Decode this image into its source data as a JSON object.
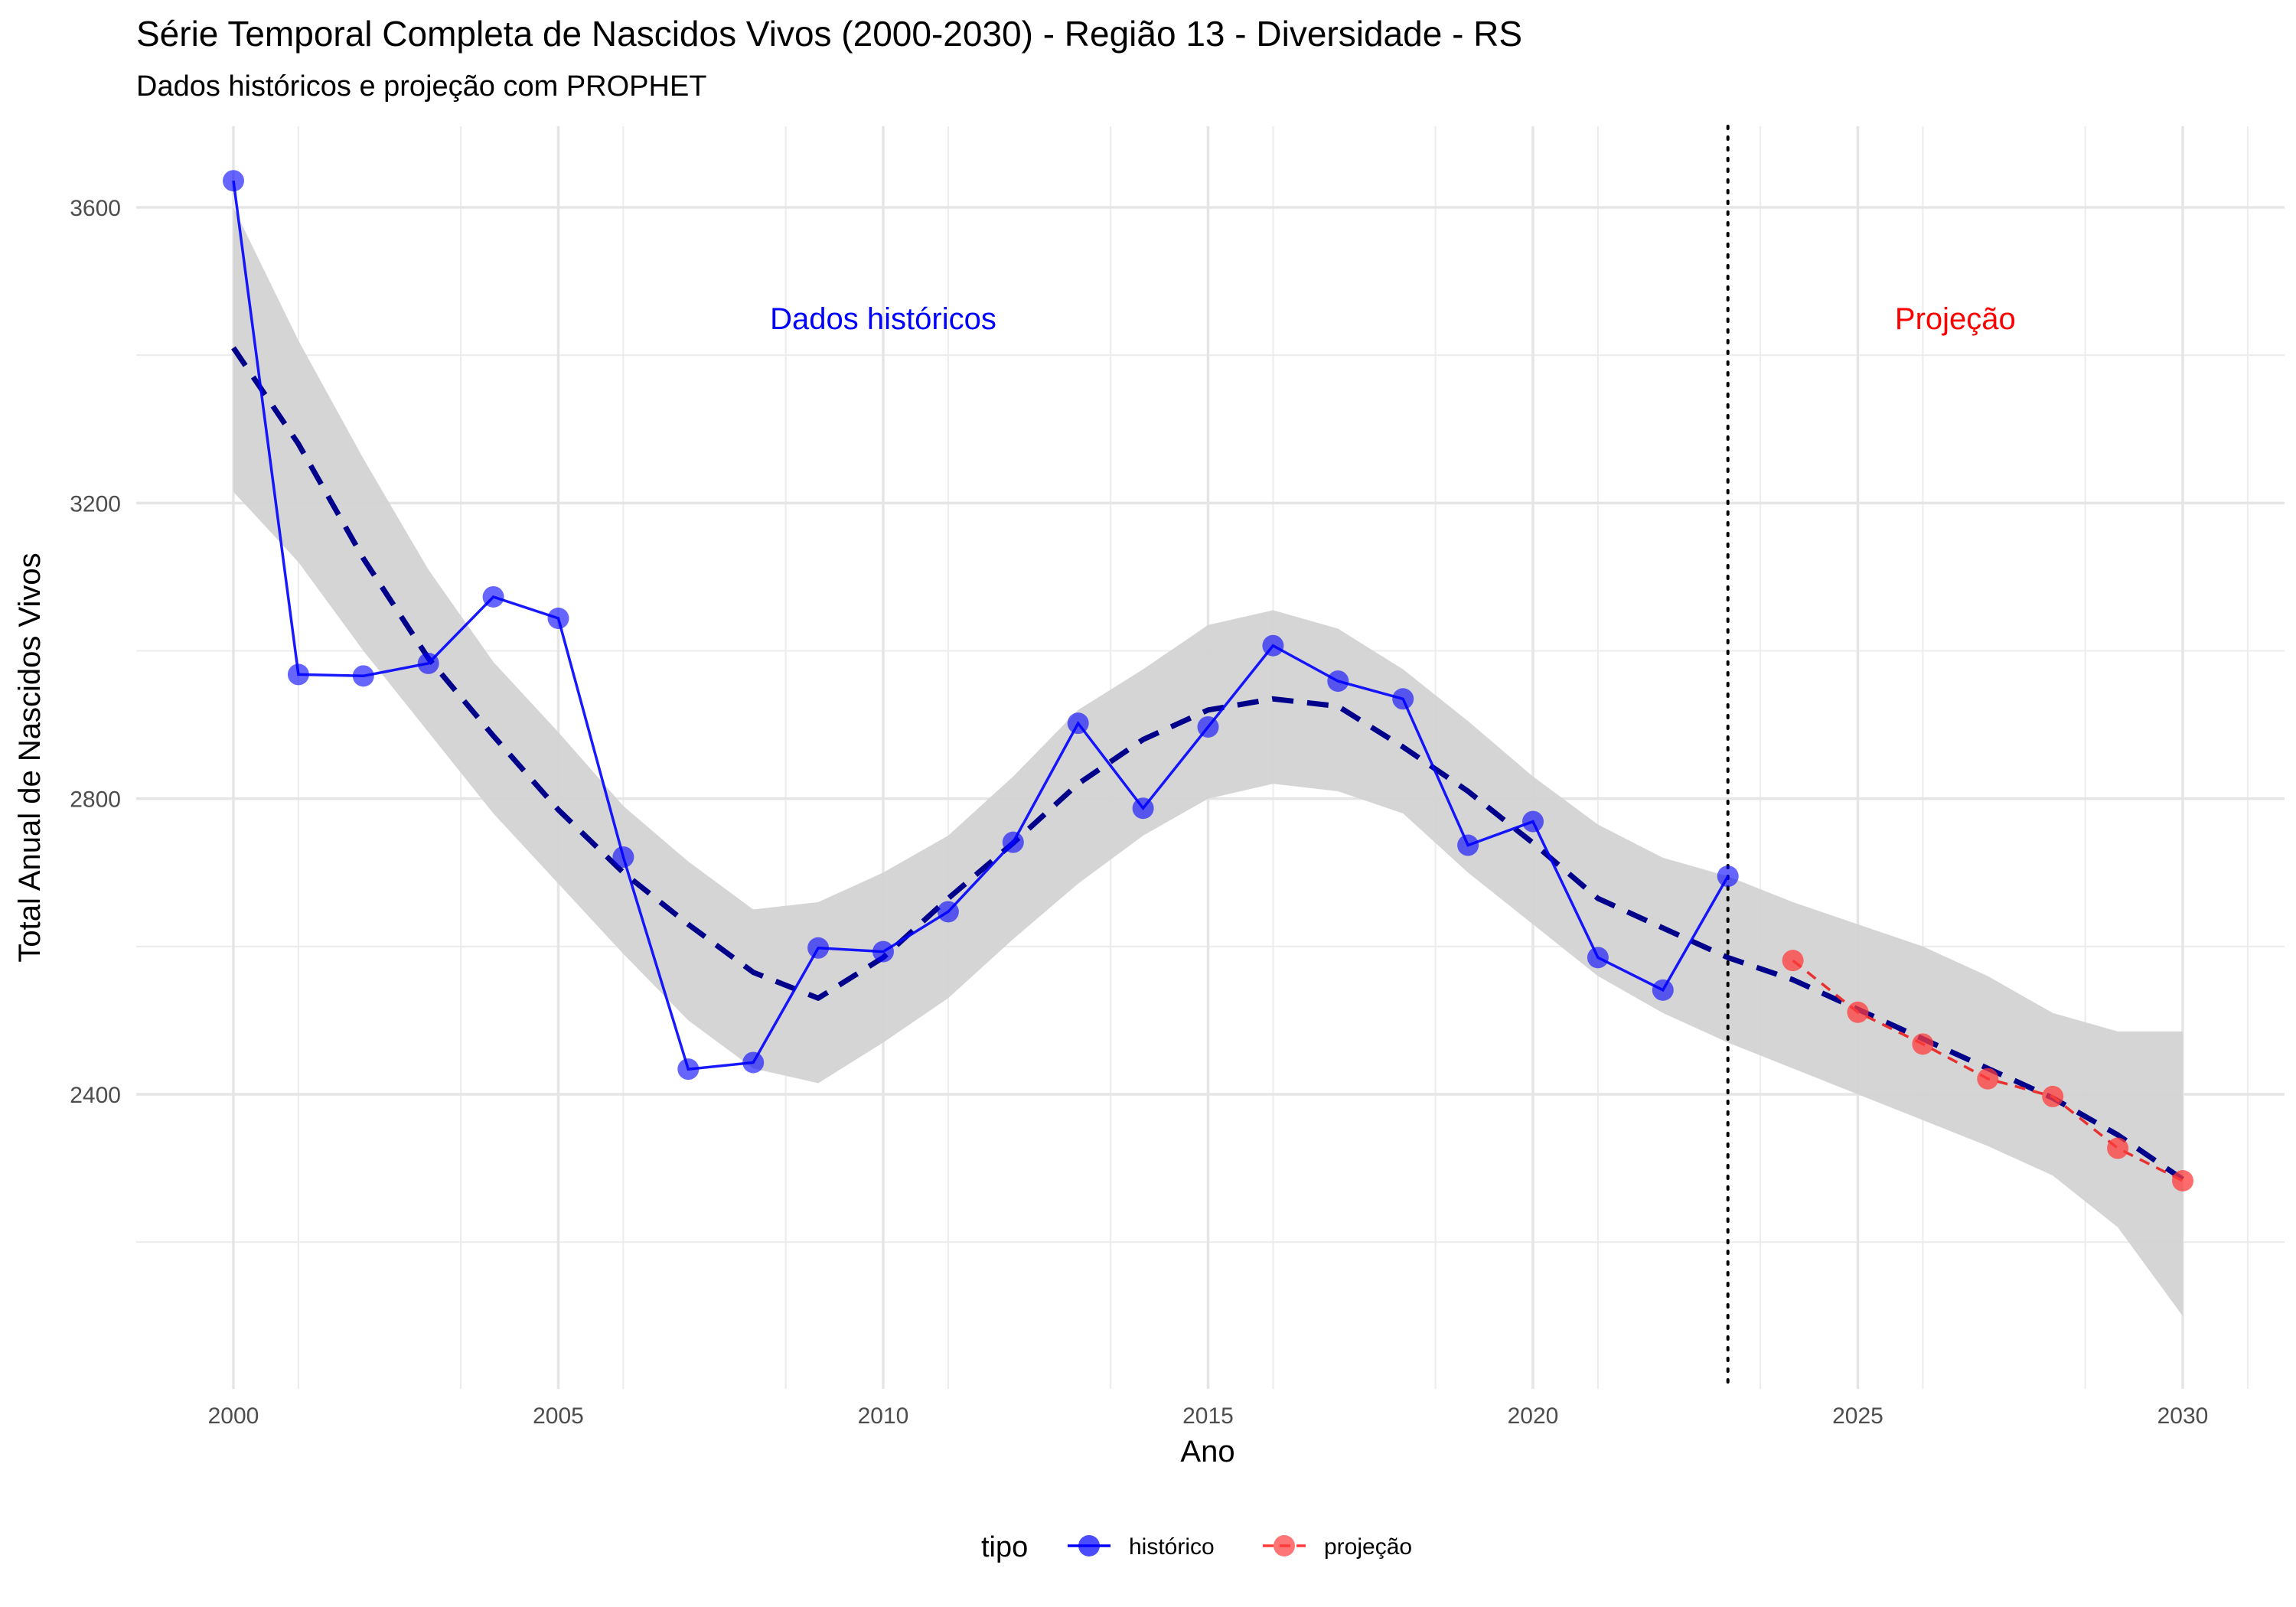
{
  "chart_data": {
    "type": "line",
    "title": "Série Temporal Completa de Nascidos Vivos (2000-2030) -  Região 13 - Diversidade - RS",
    "subtitle": "Dados históricos e projeção com PROPHET",
    "xlabel": "Ano",
    "ylabel": "Total Anual de Nascidos Vivos",
    "xlim": [
      1998.5,
      2031.5
    ],
    "ylim": [
      2025,
      3735
    ],
    "x_ticks": [
      2000,
      2005,
      2010,
      2015,
      2020,
      2025,
      2030
    ],
    "x_tick_labels": [
      "2000",
      "2005",
      "2010",
      "2015",
      "2020",
      "2025",
      "2030"
    ],
    "y_ticks": [
      2400,
      2800,
      3200,
      3600
    ],
    "y_tick_labels": [
      "2400",
      "2800",
      "3200",
      "3600"
    ],
    "grid": true,
    "legend": {
      "title": "tipo",
      "placement": "bottom",
      "entries": [
        {
          "label": "histórico",
          "color": "#0000ff"
        },
        {
          "label": "projeção",
          "color": "#ff3b3b"
        }
      ]
    },
    "series": [
      {
        "name": "histórico",
        "color": "#0000ff",
        "x": [
          2000,
          2001,
          2002,
          2003,
          2004,
          2005,
          2006,
          2007,
          2008,
          2009,
          2010,
          2011,
          2012,
          2013,
          2014,
          2015,
          2016,
          2017,
          2018,
          2019,
          2020,
          2021,
          2022,
          2023
        ],
        "values": [
          3636,
          2968,
          2966,
          2983,
          3073,
          3044,
          2721,
          2434,
          2443,
          2598,
          2593,
          2647,
          2741,
          2902,
          2787,
          2897,
          3007,
          2959,
          2935,
          2737,
          2769,
          2585,
          2541,
          2695
        ]
      },
      {
        "name": "projeção",
        "color": "#ff3b3b",
        "x": [
          2024,
          2025,
          2026,
          2027,
          2028,
          2029,
          2030
        ],
        "values": [
          2581,
          2511,
          2468,
          2421,
          2397,
          2327,
          2283
        ]
      }
    ],
    "trend": {
      "x": [
        2000,
        2001,
        2002,
        2003,
        2004,
        2005,
        2006,
        2007,
        2008,
        2009,
        2010,
        2011,
        2012,
        2013,
        2014,
        2015,
        2016,
        2017,
        2018,
        2019,
        2020,
        2021,
        2022,
        2023,
        2024,
        2025,
        2026,
        2027,
        2028,
        2029,
        2030
      ],
      "values": [
        3410,
        3280,
        3125,
        2990,
        2885,
        2785,
        2700,
        2630,
        2565,
        2530,
        2585,
        2665,
        2740,
        2820,
        2880,
        2920,
        2935,
        2925,
        2870,
        2810,
        2740,
        2665,
        2625,
        2585,
        2555,
        2515,
        2475,
        2435,
        2395,
        2345,
        2285
      ],
      "lower": [
        3215,
        3120,
        3000,
        2890,
        2780,
        2685,
        2590,
        2500,
        2435,
        2415,
        2470,
        2530,
        2610,
        2685,
        2750,
        2800,
        2820,
        2810,
        2780,
        2700,
        2630,
        2560,
        2510,
        2470,
        2435,
        2400,
        2365,
        2330,
        2290,
        2220,
        2100
      ],
      "upper": [
        3600,
        3420,
        3260,
        3110,
        2985,
        2890,
        2790,
        2715,
        2650,
        2660,
        2700,
        2750,
        2830,
        2920,
        2975,
        3035,
        3055,
        3030,
        2975,
        2905,
        2830,
        2765,
        2720,
        2695,
        2660,
        2630,
        2600,
        2560,
        2510,
        2485,
        2485
      ],
      "color": "#00008b",
      "band_color": "#d3d3d3"
    },
    "vline": {
      "x": 2023,
      "style": "dotted",
      "color": "#000000"
    },
    "annotations": [
      {
        "text": "Dados históricos",
        "x": 2010,
        "y": 3450,
        "color": "#0000ff"
      },
      {
        "text": "Projeção",
        "x": 2026.5,
        "y": 3450,
        "color": "#ff0000"
      }
    ]
  }
}
